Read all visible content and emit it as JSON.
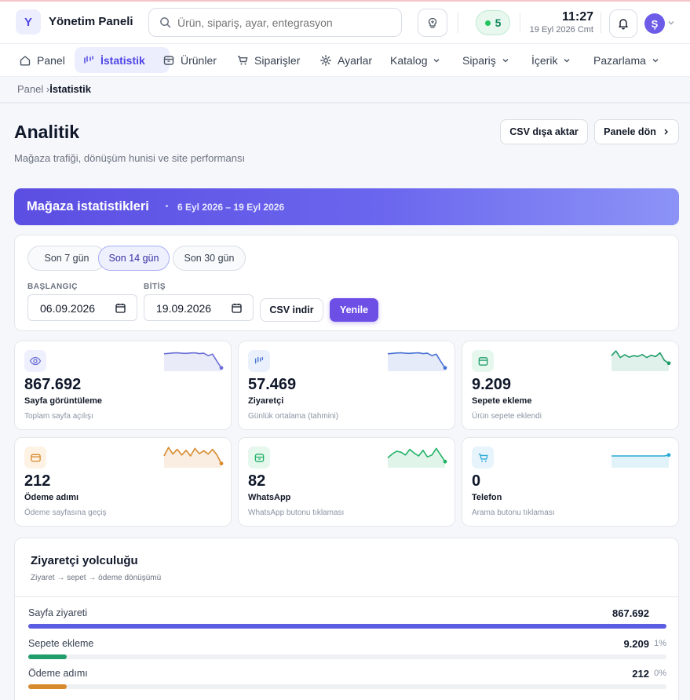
{
  "app": {
    "logo_letter": "Y",
    "title": "Yönetim Paneli"
  },
  "search": {
    "placeholder": "Ürün, sipariş, ayar, entegrasyon ara"
  },
  "header": {
    "online_count": "5",
    "time": "11:27",
    "date": "19 Eyl 2026 Cmt",
    "avatar_letter": "Ş"
  },
  "nav": [
    {
      "label": "Panel",
      "icon": "home-icon"
    },
    {
      "label": "İstatistik",
      "icon": "chart-icon",
      "active": true
    },
    {
      "label": "Ürünler",
      "icon": "box-icon"
    },
    {
      "label": "Siparişler",
      "icon": "cart-icon"
    },
    {
      "label": "Ayarlar",
      "icon": "gear-icon"
    },
    {
      "label": "Katalog",
      "icon": "chevron-down-icon"
    },
    {
      "label": "Sipariş",
      "icon": "chevron-down-icon"
    },
    {
      "label": "İçerik",
      "icon": "chevron-down-icon"
    },
    {
      "label": "Pazarlama",
      "icon": "chevron-down-icon"
    }
  ],
  "breadcrumb": {
    "parent": "Panel",
    "separator": "›",
    "current": "İstatistik"
  },
  "page": {
    "title": "Analitik",
    "subtitle": "Mağaza trafiği, dönüşüm hunisi ve site performansı",
    "export_label": "CSV dışa aktar",
    "back_label": "Panele dön"
  },
  "hero": {
    "title": "Mağaza istatistikleri",
    "range": "6 Eyl 2026 – 19 Eyl 2026"
  },
  "filters": {
    "presets": [
      "Son 7 gün",
      "Son 14 gün",
      "Son 30 gün"
    ],
    "active_preset": "Son 14 gün",
    "start_label": "BAŞLANGIÇ",
    "start_value": "06.09.2026",
    "end_label": "BİTİŞ",
    "end_value": "19.09.2026",
    "csv_label": "CSV indir",
    "refresh_label": "Yenile"
  },
  "cards": [
    {
      "value": "867.692",
      "label": "Sayfa görüntüleme",
      "desc": "Toplam sayfa açılışı",
      "icon": "eye-icon",
      "color": "#6b6fd6",
      "bg": "#eef0fe",
      "spark": [
        0.8,
        0.82,
        0.84,
        0.85,
        0.83,
        0.82,
        0.84,
        0.85,
        0.81,
        0.83,
        0.7,
        0.78,
        0.4,
        0.05
      ]
    },
    {
      "value": "57.469",
      "label": "Ziyaretçi",
      "desc": "Günlük ortalama (tahmini)",
      "icon": "chart-icon",
      "color": "#4a72d3",
      "bg": "#eaf1fd",
      "spark": [
        0.8,
        0.82,
        0.84,
        0.85,
        0.83,
        0.82,
        0.84,
        0.85,
        0.81,
        0.83,
        0.7,
        0.78,
        0.4,
        0.05
      ]
    },
    {
      "value": "9.209",
      "label": "Sepete ekleme",
      "desc": "Ürün sepete eklendi",
      "icon": "basket-icon",
      "color": "#1e9d68",
      "bg": "#e6f7ee",
      "spark": [
        0.7,
        0.95,
        0.6,
        0.75,
        0.62,
        0.7,
        0.66,
        0.76,
        0.6,
        0.72,
        0.65,
        0.85,
        0.45,
        0.3
      ]
    },
    {
      "value": "212",
      "label": "Ödeme adımı",
      "desc": "Ödeme sayfasına geçiş",
      "icon": "card-icon",
      "color": "#d88a2e",
      "bg": "#fdf2e4",
      "spark": [
        0.5,
        0.95,
        0.6,
        0.85,
        0.55,
        0.8,
        0.5,
        0.9,
        0.62,
        0.78,
        0.6,
        0.85,
        0.55,
        0.1
      ]
    },
    {
      "value": "82",
      "label": "WhatsApp",
      "desc": "WhatsApp butonu tıklaması",
      "icon": "chat-icon",
      "color": "#22b267",
      "bg": "#e6f7ee",
      "spark": [
        0.4,
        0.6,
        0.75,
        0.7,
        0.55,
        0.85,
        0.65,
        0.5,
        0.8,
        0.45,
        0.55,
        0.9,
        0.55,
        0.2
      ]
    },
    {
      "value": "0",
      "label": "Telefon",
      "desc": "Arama butonu tıklaması",
      "icon": "phone-icon",
      "color": "#2ba9d6",
      "bg": "#e7f4fb",
      "spark": [
        0.5,
        0.5,
        0.5,
        0.5,
        0.5,
        0.5,
        0.5,
        0.5,
        0.5,
        0.5,
        0.5,
        0.5,
        0.5,
        0.55
      ]
    }
  ],
  "journey": {
    "title": "Ziyaretçi yolculuğu",
    "subtitle": "Ziyaret → sepet → ödeme dönüşümü",
    "rows": [
      {
        "label": "Sayfa ziyareti",
        "value": "867.692",
        "percent": "",
        "fill": 1.0,
        "color": "#5b5de0"
      },
      {
        "label": "Sepete ekleme",
        "value": "9.209",
        "percent": "1%",
        "fill": 0.06,
        "color": "#1f9d6b"
      },
      {
        "label": "Ödeme adımı",
        "value": "212",
        "percent": "0%",
        "fill": 0.06,
        "color": "#d88a2e"
      }
    ]
  }
}
